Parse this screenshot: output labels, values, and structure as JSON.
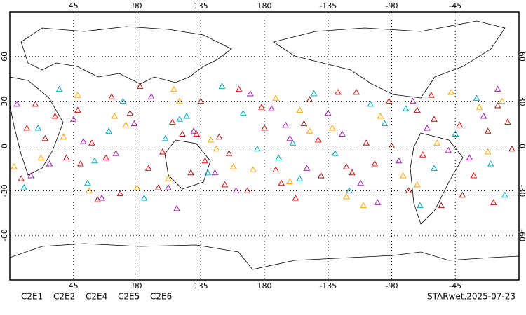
{
  "chart_data": {
    "type": "map",
    "footer": "STARwet.2025-07-23",
    "xlim": [
      0,
      360
    ],
    "ylim": [
      -90,
      90
    ],
    "xticks": [
      45,
      90,
      135,
      180,
      {
        "value": 225,
        "label": "-135"
      },
      {
        "value": 270,
        "label": "-90"
      },
      {
        "value": 315,
        "label": "-45"
      }
    ],
    "yticks": [
      60,
      30,
      0,
      -30,
      -60
    ],
    "grid": true,
    "series": [
      {
        "name": "C2E1",
        "color": "#00a8c0",
        "lon": [
          20,
          55,
          80,
          110,
          140,
          165,
          190,
          215,
          240,
          265,
          290,
          315,
          340,
          35,
          95,
          125,
          175,
          205,
          255,
          300,
          330,
          10,
          70,
          150,
          230,
          280,
          350,
          60,
          120,
          200
        ],
        "lat": [
          12,
          -25,
          30,
          5,
          -18,
          22,
          -8,
          35,
          -30,
          15,
          -40,
          8,
          -12,
          38,
          -35,
          20,
          -2,
          -22,
          28,
          -15,
          32,
          -28,
          10,
          40,
          -5,
          25,
          -33,
          -10,
          18,
          2
        ]
      },
      {
        "name": "C2E2",
        "color": "#a020b0",
        "lon": [
          15,
          45,
          75,
          100,
          130,
          160,
          185,
          210,
          235,
          260,
          285,
          310,
          335,
          28,
          88,
          118,
          170,
          198,
          248,
          295,
          325,
          5,
          65,
          145,
          225,
          275,
          345,
          52,
          112,
          195
        ],
        "lat": [
          -20,
          18,
          -5,
          33,
          10,
          -30,
          25,
          -15,
          8,
          -38,
          30,
          -3,
          20,
          -12,
          15,
          -42,
          35,
          5,
          -25,
          12,
          -8,
          28,
          -35,
          -18,
          22,
          -10,
          38,
          3,
          -28,
          14
        ]
      },
      {
        "name": "C2E4",
        "color": "#a01818",
        "lon": [
          25,
          50,
          85,
          105,
          135,
          155,
          180,
          220,
          245,
          270,
          300,
          320,
          345,
          40,
          92,
          128,
          168,
          208,
          252,
          305,
          338,
          8,
          72,
          148,
          238,
          288,
          355,
          62,
          122,
          212
        ],
        "lat": [
          5,
          -12,
          22,
          -28,
          30,
          -5,
          12,
          -20,
          36,
          0,
          18,
          -33,
          27,
          -8,
          40,
          -18,
          -30,
          15,
          2,
          -40,
          10,
          -22,
          33,
          6,
          -14,
          24,
          -2,
          -36,
          8,
          31
        ]
      },
      {
        "name": "C2E5",
        "color": "#e01010",
        "lon": [
          18,
          58,
          78,
          115,
          138,
          162,
          192,
          218,
          242,
          268,
          292,
          318,
          342,
          32,
          98,
          132,
          178,
          202,
          258,
          298,
          328,
          12,
          68,
          152,
          232,
          282,
          352,
          48,
          108,
          188
        ],
        "lat": [
          28,
          2,
          -32,
          16,
          -10,
          38,
          -25,
          4,
          -18,
          30,
          -6,
          14,
          -38,
          20,
          -15,
          8,
          26,
          -35,
          -12,
          34,
          -20,
          12,
          -8,
          -26,
          36,
          -30,
          16,
          24,
          -4,
          -16
        ]
      },
      {
        "name": "C2E6",
        "color": "#ffa500",
        "lon": [
          22,
          48,
          82,
          112,
          142,
          158,
          188,
          212,
          238,
          262,
          288,
          312,
          338,
          38,
          90,
          120,
          172,
          205,
          250,
          302,
          332,
          3,
          74,
          146,
          228,
          278,
          348,
          56,
          116,
          198
        ],
        "lat": [
          -8,
          34,
          14,
          -22,
          4,
          -14,
          32,
          10,
          -34,
          20,
          -26,
          36,
          -4,
          6,
          -28,
          30,
          -16,
          24,
          -40,
          2,
          26,
          -14,
          20,
          -2,
          12,
          -20,
          30,
          -30,
          38,
          -24
        ]
      }
    ]
  }
}
